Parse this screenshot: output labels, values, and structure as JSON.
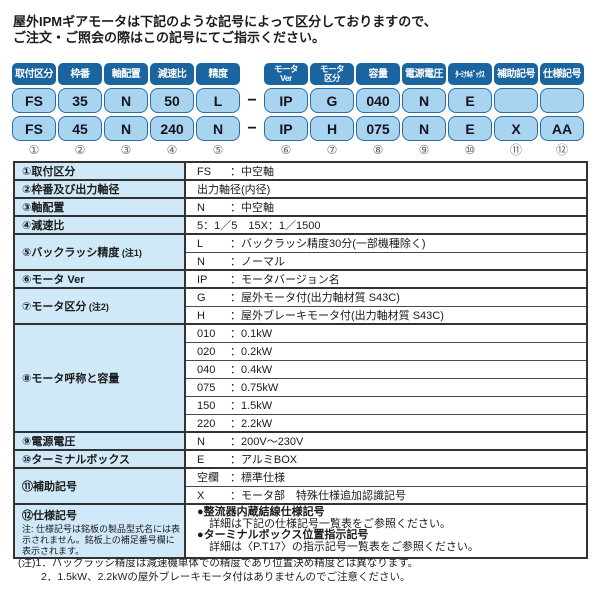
{
  "colors": {
    "badge_bg": "#1a649f",
    "chip_bg": "#a9d4f0",
    "chip_border": "#2a6ca6",
    "label_col_bg": "#cfe9f8",
    "table_border": "#333333"
  },
  "page": {
    "intro_line1": "屋外IPMギアモータは下記のような記号によって区分しておりますので、",
    "intro_line2": "ご注文・ご照会の際はこの記号にてご指示ください。"
  },
  "code_diagram": {
    "dash": "−",
    "columns": [
      {
        "num": "①",
        "badge": "取付区分",
        "badge2": "",
        "row1": "FS",
        "row2": "FS"
      },
      {
        "num": "②",
        "badge": "枠番",
        "badge2": "",
        "row1": "35",
        "row2": "45"
      },
      {
        "num": "③",
        "badge": "軸配置",
        "badge2": "",
        "row1": "N",
        "row2": "N"
      },
      {
        "num": "④",
        "badge": "減速比",
        "badge2": "",
        "row1": "50",
        "row2": "240"
      },
      {
        "num": "⑤",
        "badge": "精度",
        "badge2": "",
        "row1": "L",
        "row2": "N"
      },
      {
        "num": "⑥",
        "badge": "モータ",
        "badge2": "Ver",
        "row1": "IP",
        "row2": "IP"
      },
      {
        "num": "⑦",
        "badge": "モータ",
        "badge2": "区分",
        "row1": "G",
        "row2": "H"
      },
      {
        "num": "⑧",
        "badge": "容量",
        "badge2": "",
        "row1": "040",
        "row2": "075"
      },
      {
        "num": "⑨",
        "badge": "電源電圧",
        "badge2": "",
        "row1": "N",
        "row2": "N"
      },
      {
        "num": "⑩",
        "badge": "ﾀｰﾐﾅﾙﾎﾞｯｸｽ",
        "badge2": "",
        "row1": "E",
        "row2": "E"
      },
      {
        "num": "⑪",
        "badge": "補助記号",
        "badge2": "",
        "row1": "",
        "row2": "X"
      },
      {
        "num": "⑫",
        "badge": "仕様記号",
        "badge2": "",
        "row1": "",
        "row2": "AA"
      }
    ]
  },
  "spec_table": {
    "colon": "：",
    "rows": [
      {
        "label": "①取付区分",
        "entries": [
          {
            "code": "FS",
            "desc": "中空軸"
          }
        ]
      },
      {
        "label": "②枠番及び出力軸径",
        "entries": [
          {
            "plain": "出力軸径(内径)"
          }
        ]
      },
      {
        "label": "③軸配置",
        "entries": [
          {
            "code": "N",
            "desc": "中空軸"
          }
        ]
      },
      {
        "label": "④減速比",
        "entries": [
          {
            "plain": "5：1／5　15X：1／1500"
          }
        ]
      },
      {
        "label": "⑤バックラッシ精度",
        "label_note": " (注1)",
        "entries": [
          {
            "code": "L",
            "desc": "バックラッシ精度30分(一部機種除く)"
          },
          {
            "code": "N",
            "desc": "ノーマル"
          }
        ]
      },
      {
        "label": "⑥モータ Ver",
        "entries": [
          {
            "code": "IP",
            "desc": "モータバージョン名"
          }
        ]
      },
      {
        "label": "⑦モータ区分",
        "label_note": " (注2)",
        "entries": [
          {
            "code": "G",
            "desc": "屋外モータ付(出力軸材質 S43C)"
          },
          {
            "code": "H",
            "desc": "屋外ブレーキモータ付(出力軸材質 S43C)"
          }
        ]
      },
      {
        "label": "⑧モータ呼称と容量",
        "entries": [
          {
            "code": "010",
            "desc": "0.1kW"
          },
          {
            "code": "020",
            "desc": "0.2kW"
          },
          {
            "code": "040",
            "desc": "0.4kW"
          },
          {
            "code": "075",
            "desc": "0.75kW"
          },
          {
            "code": "150",
            "desc": "1.5kW"
          },
          {
            "code": "220",
            "desc": "2.2kW"
          }
        ]
      },
      {
        "label": "⑨電源電圧",
        "entries": [
          {
            "code": "N",
            "desc": "200V～230V"
          }
        ]
      },
      {
        "label": "⑩ターミナルボックス",
        "entries": [
          {
            "code": "E",
            "desc": "アルミBOX"
          }
        ]
      },
      {
        "label": "⑪補助記号",
        "entries": [
          {
            "code": "空欄",
            "desc": "標準仕様"
          },
          {
            "code": "X",
            "desc": "モータ部　特殊仕様追加認識記号"
          }
        ]
      },
      {
        "label": "⑫仕様記号",
        "note": "注: 仕様記号は銘板の製品型式名には表示されません。銘板上の補足番号欄に表示されます。",
        "bullets": [
          {
            "title": "●整流器内蔵結線仕様記号",
            "detail": "詳細は下記の仕様記号一覧表をご参照ください。"
          },
          {
            "title": "●ターミナルボックス位置指示記号",
            "detail": "詳細は〈P.T17〉の指示記号一覧表をご参照ください。"
          }
        ]
      }
    ]
  },
  "footnotes": {
    "line1": "(注)1．バックラッシ精度は減速機単体での精度であり位置決め精度とは異なります。",
    "line2": "2．1.5kW、2.2kWの屋外ブレーキモータ付はありませんのでご注意ください。"
  }
}
